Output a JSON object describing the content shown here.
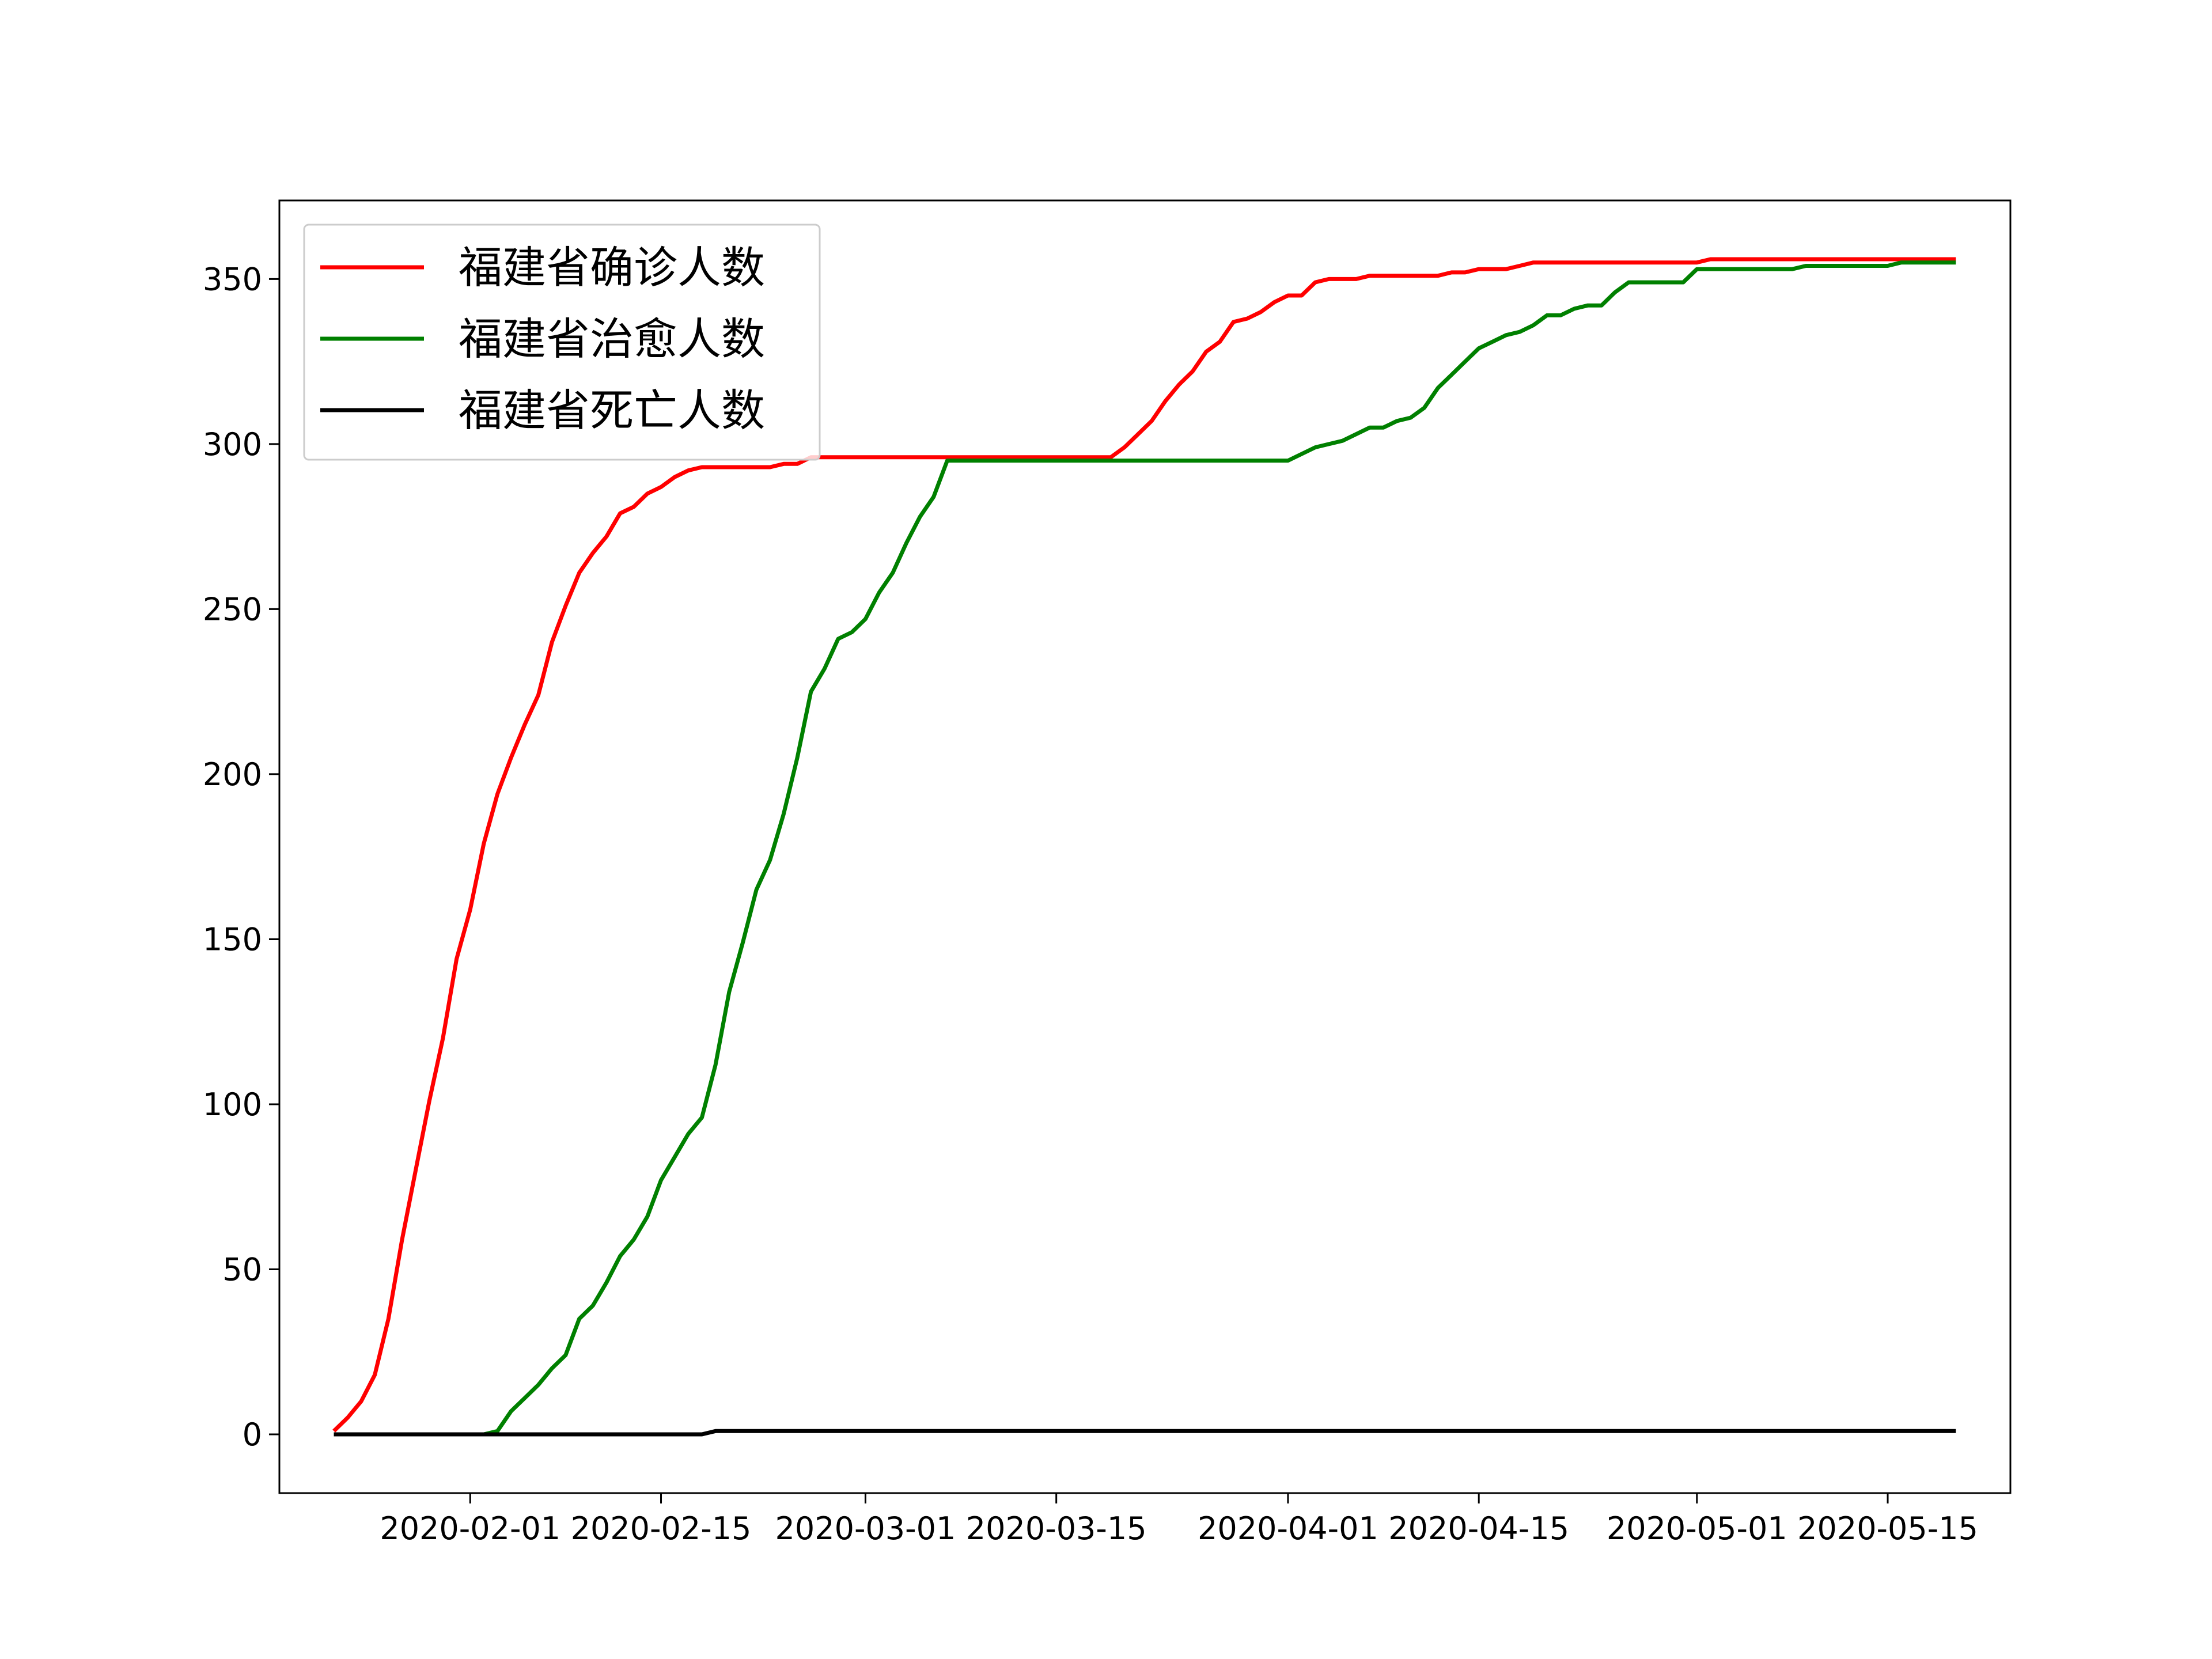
{
  "chart_data": {
    "type": "line",
    "title": "",
    "xlabel": "",
    "ylabel": "",
    "x_start": "2020-01-22",
    "x_end": "2020-05-20",
    "xlim": [
      "2020-01-18",
      "2020-05-24"
    ],
    "ylim": [
      -17.8,
      373.8
    ],
    "grid": false,
    "legend_position": "upper left",
    "x_ticks": [
      {
        "date": "2020-02-01",
        "label": "2020-02-01"
      },
      {
        "date": "2020-02-15",
        "label": "2020-02-15"
      },
      {
        "date": "2020-03-01",
        "label": "2020-03-01"
      },
      {
        "date": "2020-03-15",
        "label": "2020-03-15"
      },
      {
        "date": "2020-04-01",
        "label": "2020-04-01"
      },
      {
        "date": "2020-04-15",
        "label": "2020-04-15"
      },
      {
        "date": "2020-05-01",
        "label": "2020-05-01"
      },
      {
        "date": "2020-05-15",
        "label": "2020-05-15"
      }
    ],
    "y_ticks": [
      0,
      50,
      100,
      150,
      200,
      250,
      300,
      350
    ],
    "series": [
      {
        "name": "福建省确诊人数",
        "color": "#ff0000",
        "values": [
          1,
          5,
          10,
          18,
          35,
          59,
          80,
          101,
          120,
          144,
          159,
          179,
          194,
          205,
          215,
          224,
          240,
          251,
          261,
          267,
          272,
          279,
          281,
          285,
          287,
          290,
          292,
          293,
          293,
          293,
          293,
          293,
          293,
          294,
          294,
          296,
          296,
          296,
          296,
          296,
          296,
          296,
          296,
          296,
          296,
          296,
          296,
          296,
          296,
          296,
          296,
          296,
          296,
          296,
          296,
          296,
          296,
          296,
          299,
          303,
          307,
          313,
          318,
          322,
          328,
          331,
          337,
          338,
          340,
          343,
          345,
          345,
          349,
          350,
          350,
          350,
          351,
          351,
          351,
          351,
          351,
          351,
          352,
          352,
          353,
          353,
          353,
          354,
          355,
          355,
          355,
          355,
          355,
          355,
          355,
          355,
          355,
          355,
          355,
          355,
          355,
          356,
          356,
          356,
          356,
          356,
          356,
          356,
          356,
          356,
          356,
          356,
          356,
          356,
          356,
          356,
          356,
          356,
          356,
          356
        ]
      },
      {
        "name": "福建省治愈人数",
        "color": "#008000",
        "values": [
          0,
          0,
          0,
          0,
          0,
          0,
          0,
          0,
          0,
          0,
          0,
          0,
          1,
          7,
          11,
          15,
          20,
          24,
          35,
          39,
          46,
          54,
          59,
          66,
          77,
          84,
          91,
          96,
          112,
          134,
          149,
          165,
          174,
          188,
          205,
          225,
          232,
          241,
          243,
          247,
          255,
          261,
          270,
          278,
          284,
          295,
          295,
          295,
          295,
          295,
          295,
          295,
          295,
          295,
          295,
          295,
          295,
          295,
          295,
          295,
          295,
          295,
          295,
          295,
          295,
          295,
          295,
          295,
          295,
          295,
          295,
          297,
          299,
          300,
          301,
          303,
          305,
          305,
          307,
          308,
          311,
          317,
          321,
          325,
          329,
          331,
          333,
          334,
          336,
          339,
          339,
          341,
          342,
          342,
          346,
          349,
          349,
          349,
          349,
          349,
          353,
          353,
          353,
          353,
          353,
          353,
          353,
          353,
          354,
          354,
          354,
          354,
          354,
          354,
          354,
          355,
          355,
          355,
          355,
          355
        ]
      },
      {
        "name": "福建省死亡人数",
        "color": "#000000",
        "values": [
          0,
          0,
          0,
          0,
          0,
          0,
          0,
          0,
          0,
          0,
          0,
          0,
          0,
          0,
          0,
          0,
          0,
          0,
          0,
          0,
          0,
          0,
          0,
          0,
          0,
          0,
          0,
          0,
          1,
          1,
          1,
          1,
          1,
          1,
          1,
          1,
          1,
          1,
          1,
          1,
          1,
          1,
          1,
          1,
          1,
          1,
          1,
          1,
          1,
          1,
          1,
          1,
          1,
          1,
          1,
          1,
          1,
          1,
          1,
          1,
          1,
          1,
          1,
          1,
          1,
          1,
          1,
          1,
          1,
          1,
          1,
          1,
          1,
          1,
          1,
          1,
          1,
          1,
          1,
          1,
          1,
          1,
          1,
          1,
          1,
          1,
          1,
          1,
          1,
          1,
          1,
          1,
          1,
          1,
          1,
          1,
          1,
          1,
          1,
          1,
          1,
          1,
          1,
          1,
          1,
          1,
          1,
          1,
          1,
          1,
          1,
          1,
          1,
          1,
          1,
          1,
          1,
          1,
          1,
          1
        ]
      }
    ]
  }
}
